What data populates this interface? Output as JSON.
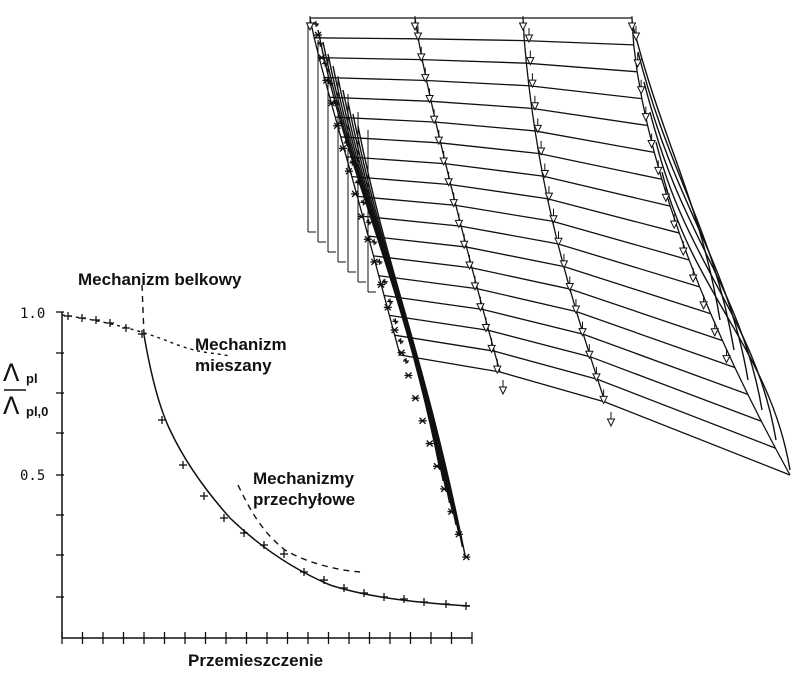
{
  "labels": {
    "beam_mechanism": "Mechanizm belkowy",
    "mixed_mechanism_l1": "Mechanizm",
    "mixed_mechanism_l2": "mieszany",
    "sway_mechanisms_l1": "Mechanizmy",
    "sway_mechanisms_l2": "przechyłowe",
    "x_axis": "Przemieszczenie",
    "y_num_symbol": "Λ",
    "y_num_sub": "pl",
    "y_den_symbol": "Λ",
    "y_den_sub": "pl,0",
    "tick_top": "1.0",
    "tick_mid": "0.5"
  },
  "colors": {
    "ink": "#111111",
    "background": "#ffffff"
  }
}
